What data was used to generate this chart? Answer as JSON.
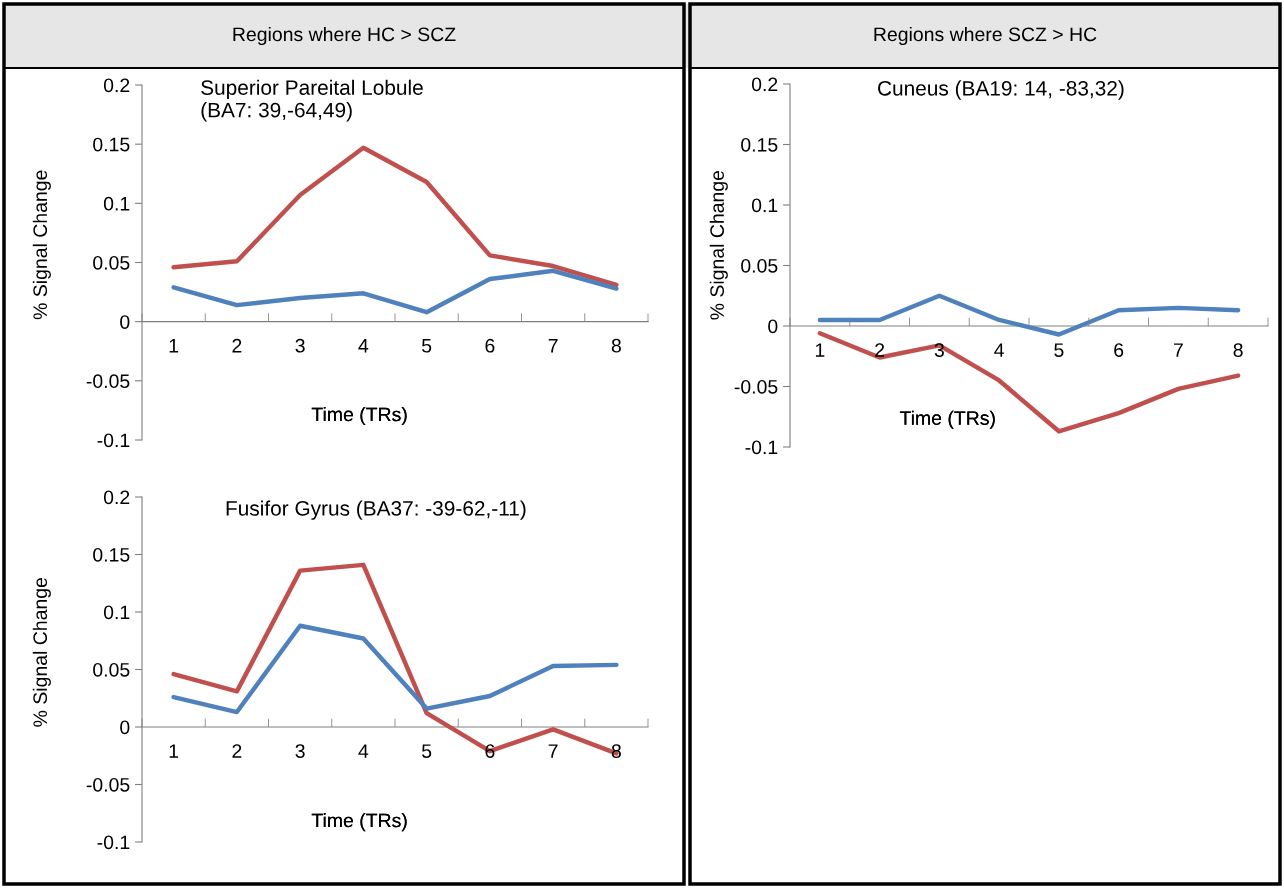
{
  "chart_data": [
    {
      "type": "line",
      "subtitle": "Regions where HC > SCZ",
      "title": "Superior Pareital Lobule\n(BA7: 39,-64,49)",
      "xlabel": "Time (TRs)",
      "ylabel": "% Signal Change",
      "categories": [
        "1",
        "2",
        "3",
        "4",
        "5",
        "6",
        "7",
        "8"
      ],
      "series": [
        {
          "color": "#c0504d",
          "values": [
            0.046,
            0.051,
            0.107,
            0.147,
            0.118,
            0.056,
            0.047,
            0.031
          ]
        },
        {
          "color": "#4f81bd",
          "values": [
            0.029,
            0.014,
            0.02,
            0.024,
            0.008,
            0.036,
            0.043,
            0.028
          ]
        }
      ],
      "ylim": [
        -0.1,
        0.2
      ],
      "yticks": [
        -0.1,
        -0.05,
        0,
        0.05,
        0.1,
        0.15,
        0.2
      ]
    },
    {
      "type": "line",
      "title": "Fusifor Gyrus (BA37: -39-62,-11)",
      "xlabel": "Time (TRs)",
      "ylabel": "% Signal Change",
      "categories": [
        "1",
        "2",
        "3",
        "4",
        "5",
        "6",
        "7",
        "8"
      ],
      "series": [
        {
          "color": "#c0504d",
          "values": [
            0.046,
            0.031,
            0.136,
            0.141,
            0.012,
            -0.021,
            -0.002,
            -0.023
          ]
        },
        {
          "color": "#4f81bd",
          "values": [
            0.026,
            0.013,
            0.088,
            0.077,
            0.016,
            0.027,
            0.053,
            0.054
          ]
        }
      ],
      "ylim": [
        -0.1,
        0.2
      ],
      "yticks": [
        -0.1,
        -0.05,
        0,
        0.05,
        0.1,
        0.15,
        0.2
      ]
    },
    {
      "type": "line",
      "subtitle": "Regions where SCZ > HC",
      "title": "Cuneus (BA19: 14, -83,32)",
      "xlabel": "Time (TRs)",
      "ylabel": "% Signal Change",
      "categories": [
        "1",
        "2",
        "3",
        "4",
        "5",
        "6",
        "7",
        "8"
      ],
      "series": [
        {
          "color": "#c0504d",
          "values": [
            -0.006,
            -0.026,
            -0.016,
            -0.045,
            -0.087,
            -0.072,
            -0.052,
            -0.041
          ]
        },
        {
          "color": "#4f81bd",
          "values": [
            0.005,
            0.005,
            0.025,
            0.005,
            -0.007,
            0.013,
            0.015,
            0.013
          ]
        }
      ],
      "ylim": [
        -0.1,
        0.2
      ],
      "yticks": [
        -0.1,
        -0.05,
        0,
        0.05,
        0.1,
        0.15,
        0.2
      ]
    }
  ]
}
